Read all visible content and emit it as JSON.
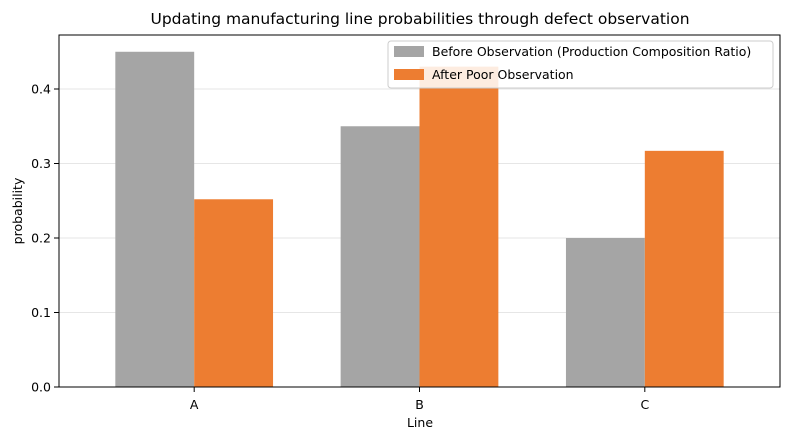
{
  "chart_data": {
    "type": "bar",
    "title": "Updating manufacturing line probabilities through defect observation",
    "xlabel": "Line",
    "ylabel": "probability",
    "categories": [
      "A",
      "B",
      "C"
    ],
    "series": [
      {
        "name": "Before Observation (Production Composition Ratio)",
        "values": [
          0.45,
          0.35,
          0.2
        ],
        "color": "#a5a5a5"
      },
      {
        "name": "After Poor Observation",
        "values": [
          0.252,
          0.43,
          0.317
        ],
        "color": "#ed7d31"
      }
    ],
    "ylim": [
      0,
      0.4725
    ],
    "yticks": [
      0.0,
      0.1,
      0.2,
      0.3,
      0.4
    ],
    "ytick_labels": [
      "0.0",
      "0.1",
      "0.2",
      "0.3",
      "0.4"
    ],
    "grid": "y",
    "legend_position": "top-right"
  }
}
